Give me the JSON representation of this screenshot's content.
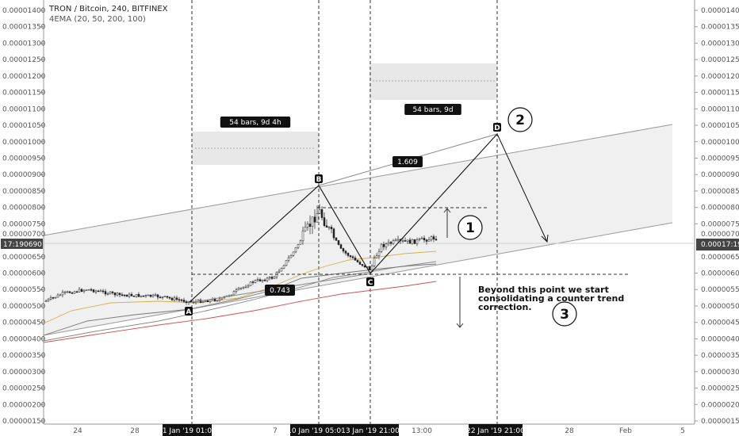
{
  "header": {
    "title": "TRON / Bitcoin, 240, BITFINEX",
    "indicator": "4EMA (20, 50, 200, 100)"
  },
  "chart_data": {
    "type": "candlestick",
    "symbol": "TRON / Bitcoin",
    "interval": "240",
    "exchange": "BITFINEX",
    "ylim": [
      1.5e-06,
      1.4e-06
    ],
    "y_ticks": [
      "0.00000150",
      "0.00000200",
      "0.00000250",
      "0.00000300",
      "0.00000350",
      "0.00000400",
      "0.00000450",
      "0.00000500",
      "0.00000550",
      "0.00000600",
      "0.00000650",
      "0.00000750",
      "0.00000800",
      "0.00000850",
      "0.00000900",
      "0.00000950",
      "0.00001000",
      "0.00001050",
      "0.00001100",
      "0.00001150",
      "0.00001200",
      "0.00001250",
      "0.00001300",
      "0.00001350",
      "0.00001400"
    ],
    "x_ticks": [
      "24",
      "28",
      "7",
      "13:00",
      "28",
      "Feb",
      "5"
    ],
    "x_highlight_labels": [
      "01 Jan '19",
      "01:00",
      "10 Jan '19",
      "05:00",
      "13 Jan '19",
      "21:00",
      "22 Jan '19",
      "21:00"
    ],
    "right_ticks": [
      "0.00001400",
      "0.00001350",
      "0.00001300",
      "0.00001250",
      "0.00001200",
      "0.00001150",
      "0.00001100",
      "0.00001050",
      "0.00001000",
      "0.00000950",
      "0.00000900",
      "0.00000850",
      "0.00000800",
      "0.00000750",
      "0.00000700",
      "0.00000650",
      "0.00000600",
      "0.00000550",
      "0.00000500",
      "0.00000450",
      "0.00000400",
      "0.00000350",
      "0.00000300",
      "0.00000250",
      "0.00000200",
      "0.00000150"
    ],
    "last_price": "0.00000690",
    "last_price_left": "0690",
    "marker_price": "0.00000700",
    "countdown": "17:19",
    "pattern_points": [
      {
        "label": "A",
        "date": "01 Jan '19",
        "value": 5.05e-06
      },
      {
        "label": "B",
        "date": "10 Jan '19",
        "value": 8.65e-06
      },
      {
        "label": "C",
        "date": "13 Jan '19",
        "value": 5.95e-06
      },
      {
        "label": "D",
        "date": "22 Jan '19",
        "value": 1.02e-05
      }
    ],
    "ratios": [
      "0.743",
      "1.609"
    ],
    "bar_counts": [
      "54 bars, 9d 4h",
      "54 bars, 9d"
    ],
    "annotations": [
      "Beyond this point we start consolidating a counter trend correction."
    ],
    "circled_numbers": [
      "1",
      "2",
      "3"
    ],
    "ema_colors": [
      "#888888",
      "#d4b04a",
      "#777777",
      "#d05050"
    ]
  }
}
